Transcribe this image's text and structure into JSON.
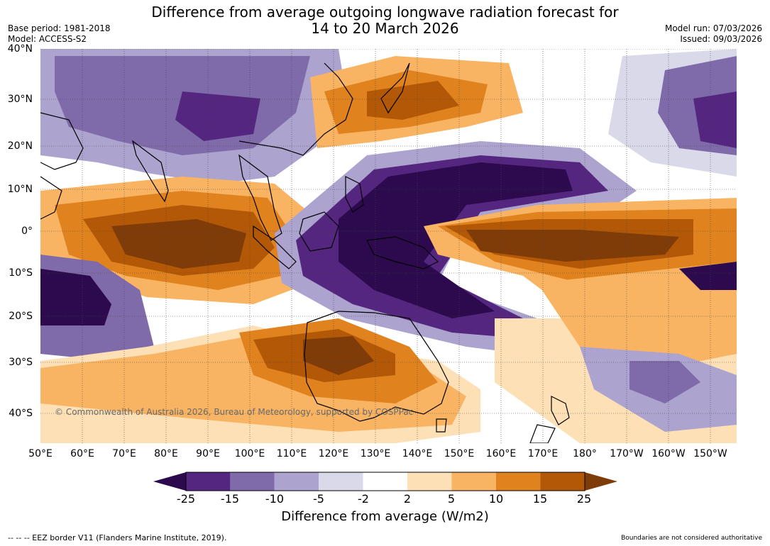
{
  "header": {
    "title_line1": "Difference from average outgoing longwave radiation forecast for",
    "title_line2": "14 to 20 March 2026",
    "base_period": "Base period: 1981-2018",
    "model": "Model: ACCESS-S2",
    "model_run": "Model run: 07/03/2026",
    "issued": "Issued: 09/03/2026"
  },
  "map": {
    "lat_labels": [
      "40°N",
      "30°N",
      "20°N",
      "10°N",
      "0°",
      "10°S",
      "20°S",
      "30°S",
      "40°S"
    ],
    "lon_labels": [
      "50°E",
      "60°E",
      "70°E",
      "80°E",
      "90°E",
      "100°E",
      "110°E",
      "120°E",
      "130°E",
      "140°E",
      "150°E",
      "160°E",
      "170°E",
      "180°",
      "170°W",
      "160°W",
      "150°W"
    ],
    "copyright": "© Commonwealth of Australia 2026, Bureau of Meteorology, supported by COSPPac"
  },
  "colorbar": {
    "ticks": [
      "-25",
      "-15",
      "-10",
      "-5",
      "-2",
      "2",
      "5",
      "10",
      "15",
      "25"
    ],
    "label": "Difference from average (W/m2)",
    "colors": [
      "#2d0a4e",
      "#54267f",
      "#7f6aaa",
      "#ada3cf",
      "#d9d9ea",
      "#ffffff",
      "#fde0b5",
      "#f8b462",
      "#e0821e",
      "#b35806",
      "#7f3b08"
    ]
  },
  "footer": {
    "eez": "--  --  -- EEZ border V11 (Flanders Marine Institute, 2019).",
    "boundaries": "Boundaries are not considered authoritative"
  }
}
